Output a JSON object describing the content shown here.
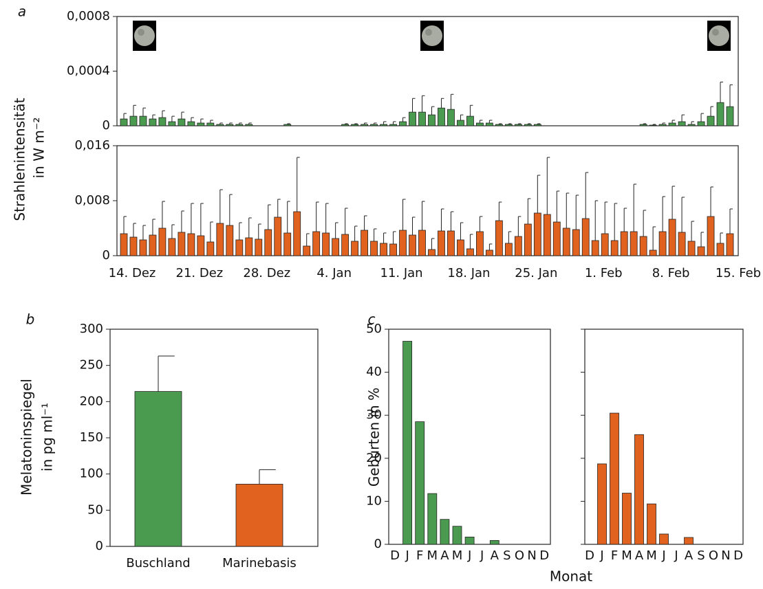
{
  "chart_data": [
    {
      "type": "bar",
      "panel_label": "a",
      "color": "#4a9a4f",
      "ylim": [
        0,
        0.0008
      ],
      "yticks": [
        0,
        {
          "value": 0.0004,
          "label": "0,0004"
        },
        {
          "value": 0.0008,
          "label": "0,0008"
        }
      ],
      "values": [
        5e-05,
        7e-05,
        7e-05,
        5e-05,
        6e-05,
        3e-05,
        5e-05,
        3e-05,
        2e-05,
        2e-05,
        1e-05,
        1e-05,
        1e-05,
        1e-05,
        0,
        0,
        0,
        1e-05,
        0,
        0,
        0,
        0,
        0,
        1e-05,
        1e-05,
        1e-05,
        1e-05,
        1e-05,
        1e-05,
        3e-05,
        0.0001,
        0.0001,
        8e-05,
        0.00013,
        0.00012,
        4e-05,
        7e-05,
        2e-05,
        2e-05,
        1e-05,
        1e-05,
        1e-05,
        1e-05,
        1e-05,
        0,
        0,
        0,
        0,
        0,
        0,
        0,
        0,
        0,
        0,
        1e-05,
        5e-06,
        1e-05,
        2e-05,
        3e-05,
        1e-05,
        3e-05,
        7e-05,
        0.00017,
        0.00014
      ],
      "errors": [
        4e-05,
        8e-05,
        6e-05,
        3e-05,
        5e-05,
        4e-05,
        5e-05,
        3e-05,
        3e-05,
        2e-05,
        1e-05,
        1e-05,
        1e-05,
        1e-05,
        0,
        0,
        0,
        5e-06,
        0,
        0,
        0,
        0,
        0,
        5e-06,
        5e-06,
        1e-05,
        1e-05,
        2e-05,
        2e-05,
        3e-05,
        0.0001,
        0.00012,
        6e-05,
        7e-05,
        0.00011,
        4e-05,
        8e-05,
        2e-05,
        2e-05,
        5e-06,
        5e-06,
        5e-06,
        5e-06,
        5e-06,
        0,
        0,
        0,
        0,
        0,
        0,
        0,
        0,
        0,
        0,
        5e-06,
        5e-06,
        1e-05,
        2e-05,
        5e-05,
        2e-05,
        6e-05,
        7e-05,
        0.00015,
        0.00016
      ]
    },
    {
      "type": "bar",
      "color": "#e0621e",
      "ylabel": [
        "Strahlenintensität",
        "in W m⁻²"
      ],
      "ylim": [
        0,
        0.016
      ],
      "yticks": [
        0,
        {
          "value": 0.008,
          "label": "0,008"
        },
        {
          "value": 0.016,
          "label": "0,016"
        }
      ],
      "categories": [
        "14. Dez",
        null,
        null,
        null,
        null,
        null,
        null,
        "21. Dez",
        null,
        null,
        null,
        null,
        null,
        null,
        "28. Dez",
        null,
        null,
        null,
        null,
        null,
        null,
        "4. Jan",
        null,
        null,
        null,
        null,
        null,
        null,
        "11. Jan",
        null,
        null,
        null,
        null,
        null,
        null,
        "18. Jan",
        null,
        null,
        null,
        null,
        null,
        null,
        "25. Jan",
        null,
        null,
        null,
        null,
        null,
        null,
        "1. Feb",
        null,
        null,
        null,
        null,
        null,
        null,
        "8. Feb",
        null,
        null,
        null,
        null,
        null,
        null,
        "15. Feb"
      ],
      "values": [
        0.0032,
        0.0027,
        0.0023,
        0.003,
        0.004,
        0.0025,
        0.0034,
        0.0032,
        0.0029,
        0.002,
        0.0047,
        0.0044,
        0.0023,
        0.0026,
        0.0024,
        0.0038,
        0.0056,
        0.0033,
        0.0064,
        0.0014,
        0.0035,
        0.0033,
        0.0025,
        0.0031,
        0.0021,
        0.0037,
        0.0021,
        0.0018,
        0.0017,
        0.0037,
        0.003,
        0.0037,
        0.0009,
        0.0036,
        0.0036,
        0.0023,
        0.001,
        0.0035,
        0.0008,
        0.0051,
        0.0018,
        0.0028,
        0.0046,
        0.0062,
        0.006,
        0.0049,
        0.004,
        0.0038,
        0.0054,
        0.0022,
        0.0032,
        0.0022,
        0.0035,
        0.0035,
        0.0028,
        0.0008,
        0.0035,
        0.0053,
        0.0034,
        0.0021,
        0.0013,
        0.0057,
        0.0018,
        0.0032
      ],
      "errors": [
        0.0025,
        0.002,
        0.0021,
        0.0023,
        0.0039,
        0.002,
        0.0031,
        0.0044,
        0.0047,
        0.0029,
        0.0049,
        0.0045,
        0.0025,
        0.0029,
        0.0022,
        0.0036,
        0.0026,
        0.0046,
        0.0079,
        0.0018,
        0.0043,
        0.0043,
        0.0023,
        0.0038,
        0.0022,
        0.0021,
        0.0018,
        0.0015,
        0.0018,
        0.0045,
        0.0026,
        0.0042,
        0.0016,
        0.0032,
        0.0028,
        0.0025,
        0.0021,
        0.0022,
        0.0009,
        0.0027,
        0.0017,
        0.0029,
        0.0037,
        0.0055,
        0.0083,
        0.0045,
        0.0051,
        0.005,
        0.0067,
        0.0058,
        0.0046,
        0.0054,
        0.0034,
        0.0069,
        0.0038,
        0.0034,
        0.0051,
        0.0048,
        0.0051,
        0.0029,
        0.0021,
        0.0043,
        0.0015,
        0.0036
      ]
    },
    {
      "type": "bar",
      "panel_label": "b",
      "colors": [
        "#4a9a4f",
        "#e0621e"
      ],
      "ylabel": [
        "Melatoninspiegel",
        "in pg ml⁻¹"
      ],
      "ylim": [
        0,
        300
      ],
      "yticks": [
        0,
        50,
        100,
        150,
        200,
        250,
        300
      ],
      "categories": [
        "Buschland",
        "Marinebasis"
      ],
      "values": [
        214,
        86
      ],
      "errors": [
        49,
        20
      ]
    },
    {
      "type": "bar",
      "panel_label": "c",
      "color": "#4a9a4f",
      "ylabel": [
        "Geburten in %"
      ],
      "ylim": [
        0,
        50
      ],
      "yticks": [
        0,
        10,
        20,
        30,
        40,
        50
      ],
      "categories": [
        "D",
        "J",
        "F",
        "M",
        "A",
        "M",
        "J",
        "J",
        "A",
        "S",
        "O",
        "N",
        "D"
      ],
      "values": [
        0,
        47.2,
        28.5,
        11.8,
        5.8,
        4.2,
        1.7,
        0,
        0.9,
        0,
        0,
        0,
        0
      ]
    },
    {
      "type": "bar",
      "color": "#e0621e",
      "tick_labels": false,
      "xlabel": "Monat",
      "ylim": [
        0,
        50
      ],
      "yticks": [
        0,
        10,
        20,
        30,
        40,
        50
      ],
      "categories": [
        "D",
        "J",
        "F",
        "M",
        "A",
        "M",
        "J",
        "J",
        "A",
        "S",
        "O",
        "N",
        "D"
      ],
      "values": [
        0,
        18.7,
        30.5,
        11.9,
        25.5,
        9.4,
        2.4,
        0,
        1.6,
        0,
        0,
        0,
        0
      ]
    }
  ]
}
